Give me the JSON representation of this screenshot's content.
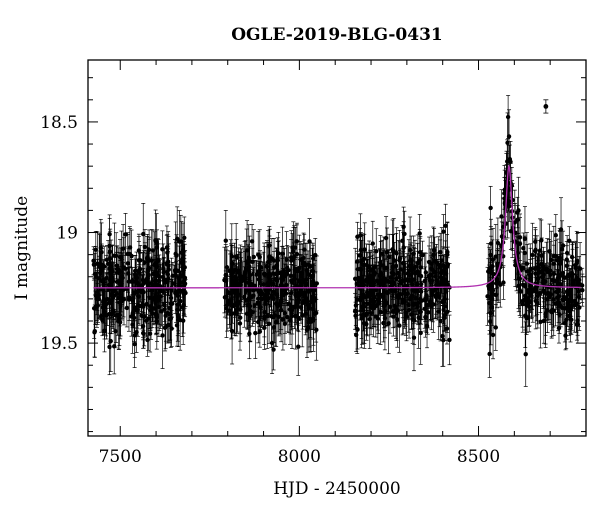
{
  "chart_data": {
    "type": "scatter",
    "title": "OGLE-2019-BLG-0431",
    "xlabel": "HJD - 2450000",
    "ylabel": "I magnitude",
    "xlim": [
      7410,
      8800
    ],
    "ylim": [
      19.92,
      18.22
    ],
    "y_inverted": true,
    "grid": false,
    "legend": "none",
    "x_ticks": [
      {
        "value": 7500,
        "label": "7500"
      },
      {
        "value": 8000,
        "label": "8000"
      },
      {
        "value": 8500,
        "label": "8500"
      }
    ],
    "y_ticks": [
      {
        "value": 18.5,
        "label": "18.5"
      },
      {
        "value": 19.0,
        "label": "19"
      },
      {
        "value": 19.5,
        "label": "19.5"
      }
    ],
    "observing_seasons": [
      {
        "start": 7425,
        "end": 7685,
        "approx_points": 340
      },
      {
        "start": 7790,
        "end": 8050,
        "approx_points": 340
      },
      {
        "start": 8155,
        "end": 8420,
        "approx_points": 340
      },
      {
        "start": 8525,
        "end": 8790,
        "approx_points": 300
      }
    ],
    "baseline_magnitude": 19.25,
    "typical_scatter_mag": 0.1,
    "typical_error_bar_mag": 0.1,
    "model": {
      "kind": "microlensing single-lens fit",
      "baseline_magnitude": 19.25,
      "peak_time": 8585,
      "peak_magnitude": 18.7,
      "timescale_days": 12
    },
    "notable_points": [
      {
        "x": 8688,
        "y": 18.43,
        "err": 0.03
      }
    ],
    "colors": {
      "points": "#000000",
      "model": "#b030b0",
      "frame": "#000000"
    }
  }
}
